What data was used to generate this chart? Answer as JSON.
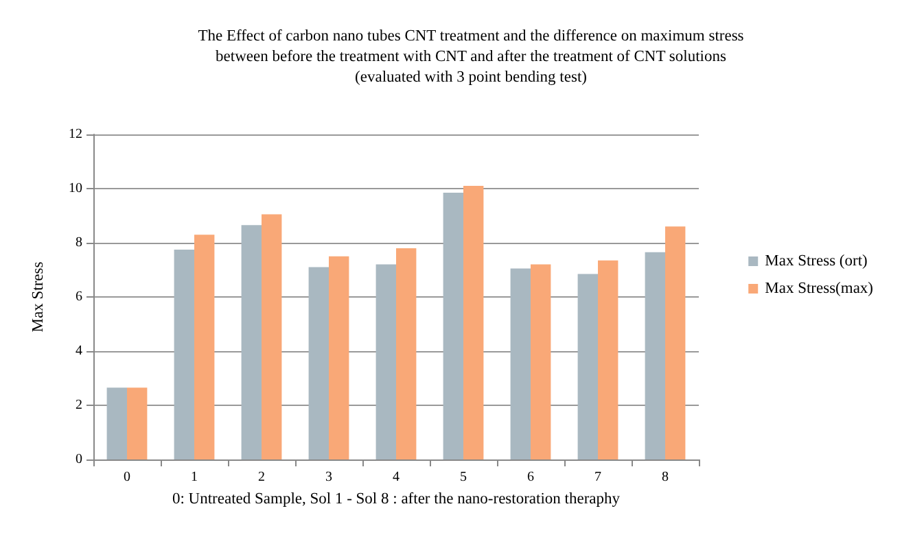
{
  "chart_data": {
    "type": "bar",
    "title": "The Effect of carbon nano tubes CNT treatment and the difference on maximum stress\nbetween before the treatment with CNT and after the treatment of CNT solutions\n(evaluated with 3 point bending test)",
    "xlabel": "0: Untreated Sample, Sol 1 - Sol 8 : after the nano-restoration theraphy",
    "ylabel": "Max Stress",
    "categories": [
      "0",
      "1",
      "2",
      "3",
      "4",
      "5",
      "6",
      "7",
      "8"
    ],
    "series": [
      {
        "name": "Max Stress (ort)",
        "color": "#a9b8c1",
        "values": [
          2.65,
          7.75,
          8.65,
          7.1,
          7.2,
          9.85,
          7.05,
          6.85,
          7.65
        ]
      },
      {
        "name": "Max Stress(max)",
        "color": "#f9a877",
        "values": [
          2.65,
          8.3,
          9.05,
          7.5,
          7.8,
          10.1,
          7.2,
          7.35,
          8.6
        ]
      }
    ],
    "ylim": [
      0,
      12
    ],
    "yticks": [
      0,
      2,
      4,
      6,
      8,
      10,
      12
    ],
    "grid": "y",
    "legend": "right"
  }
}
